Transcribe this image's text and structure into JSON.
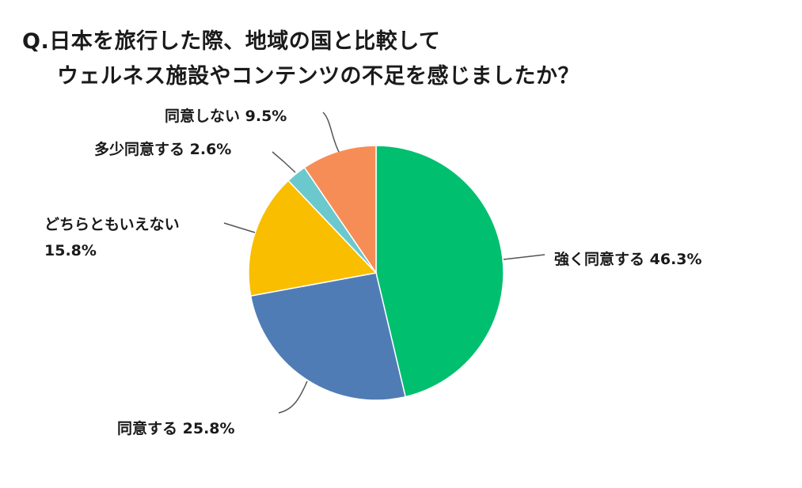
{
  "title": {
    "line1": "Q.日本を旅行した際、地域の国と比較して",
    "line2": "ウェルネス施設やコンテンツの不足を感じましたか？"
  },
  "chart_data": {
    "type": "pie",
    "start_angle_deg": 0,
    "direction": "clockwise",
    "slices": [
      {
        "label": "強く同意する",
        "value": 46.3,
        "value_text": "46.3%",
        "color": "#00BF6F"
      },
      {
        "label": "同意する",
        "value": 25.8,
        "value_text": "25.8%",
        "color": "#507CB6"
      },
      {
        "label": "どちらともいえない",
        "value": 15.8,
        "value_text": "15.8%",
        "color": "#F9BE00"
      },
      {
        "label": "多少同意する",
        "value": 2.6,
        "value_text": "2.6%",
        "color": "#6BC8CD"
      },
      {
        "label": "同意しない",
        "value": 9.5,
        "value_text": "9.5%",
        "color": "#F78D56"
      }
    ]
  }
}
